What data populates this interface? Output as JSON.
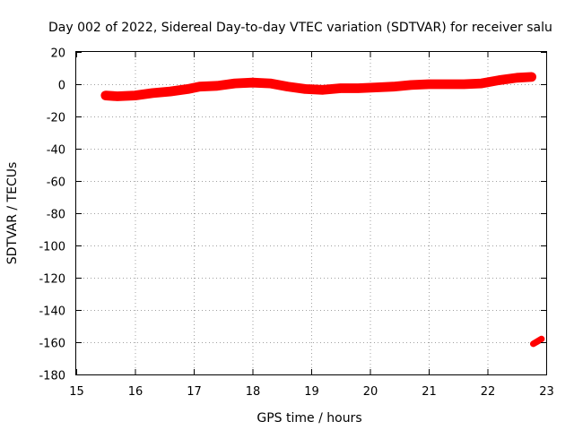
{
  "chart_data": {
    "type": "line",
    "title": "Day 002 of 2022, Sidereal Day-to-day VTEC variation (SDTVAR) for receiver salu",
    "xlabel": "GPS time / hours",
    "ylabel": "SDTVAR / TECUs",
    "xlim": [
      15,
      23
    ],
    "ylim": [
      -180,
      20
    ],
    "xticks": [
      15,
      16,
      17,
      18,
      19,
      20,
      21,
      22,
      23
    ],
    "yticks": [
      20,
      0,
      -20,
      -40,
      -60,
      -80,
      -100,
      -120,
      -140,
      -160,
      -180
    ],
    "grid": true,
    "series": [
      {
        "color": "#ff0000",
        "band_half_width": 3,
        "points": [
          [
            15.5,
            -7
          ],
          [
            15.7,
            -7.5
          ],
          [
            16.0,
            -7
          ],
          [
            16.3,
            -5.5
          ],
          [
            16.6,
            -4.5
          ],
          [
            16.9,
            -3
          ],
          [
            17.1,
            -1.5
          ],
          [
            17.4,
            -1
          ],
          [
            17.7,
            0.5
          ],
          [
            18.0,
            1
          ],
          [
            18.3,
            0.5
          ],
          [
            18.6,
            -1.5
          ],
          [
            18.9,
            -3
          ],
          [
            19.2,
            -3.5
          ],
          [
            19.5,
            -2.5
          ],
          [
            19.8,
            -2.5
          ],
          [
            20.1,
            -2
          ],
          [
            20.4,
            -1.5
          ],
          [
            20.7,
            -0.5
          ],
          [
            21.0,
            0
          ],
          [
            21.3,
            0
          ],
          [
            21.6,
            0
          ],
          [
            21.9,
            0.5
          ],
          [
            22.2,
            2.5
          ],
          [
            22.5,
            4
          ],
          [
            22.75,
            4.5
          ]
        ]
      },
      {
        "color": "#ff0000",
        "band_half_width": 2,
        "points": [
          [
            22.78,
            -161
          ],
          [
            22.85,
            -159.5
          ],
          [
            22.92,
            -158
          ]
        ]
      }
    ]
  }
}
